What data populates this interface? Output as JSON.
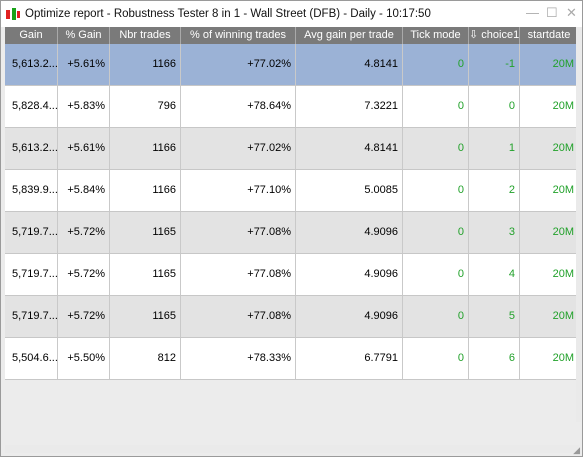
{
  "window": {
    "title": "Optimize report - Robustness Tester 8 in 1 - Wall Street (DFB) - Daily - 10:17:50",
    "controls": {
      "minimize": "—",
      "maximize": "☐",
      "close": "✕"
    }
  },
  "table": {
    "columns": [
      "Gain",
      "% Gain",
      "Nbr trades",
      "% of winning trades",
      "Avg gain per trade",
      "Tick mode",
      "⇩ choice1",
      "startdate"
    ],
    "rows": [
      {
        "gain": "5,613.2...",
        "pct_gain": "+5.61%",
        "nbr_trades": "1166",
        "pct_winning": "+77.02%",
        "avg_gain": "4.8141",
        "tick_mode": "0",
        "choice1": "-1",
        "startdate": "20M",
        "selected": true
      },
      {
        "gain": "5,828.4...",
        "pct_gain": "+5.83%",
        "nbr_trades": "796",
        "pct_winning": "+78.64%",
        "avg_gain": "7.3221",
        "tick_mode": "0",
        "choice1": "0",
        "startdate": "20M"
      },
      {
        "gain": "5,613.2...",
        "pct_gain": "+5.61%",
        "nbr_trades": "1166",
        "pct_winning": "+77.02%",
        "avg_gain": "4.8141",
        "tick_mode": "0",
        "choice1": "1",
        "startdate": "20M"
      },
      {
        "gain": "5,839.9...",
        "pct_gain": "+5.84%",
        "nbr_trades": "1166",
        "pct_winning": "+77.10%",
        "avg_gain": "5.0085",
        "tick_mode": "0",
        "choice1": "2",
        "startdate": "20M"
      },
      {
        "gain": "5,719.7...",
        "pct_gain": "+5.72%",
        "nbr_trades": "1165",
        "pct_winning": "+77.08%",
        "avg_gain": "4.9096",
        "tick_mode": "0",
        "choice1": "3",
        "startdate": "20M"
      },
      {
        "gain": "5,719.7...",
        "pct_gain": "+5.72%",
        "nbr_trades": "1165",
        "pct_winning": "+77.08%",
        "avg_gain": "4.9096",
        "tick_mode": "0",
        "choice1": "4",
        "startdate": "20M"
      },
      {
        "gain": "5,719.7...",
        "pct_gain": "+5.72%",
        "nbr_trades": "1165",
        "pct_winning": "+77.08%",
        "avg_gain": "4.9096",
        "tick_mode": "0",
        "choice1": "5",
        "startdate": "20M"
      },
      {
        "gain": "5,504.6...",
        "pct_gain": "+5.50%",
        "nbr_trades": "812",
        "pct_winning": "+78.33%",
        "avg_gain": "6.7791",
        "tick_mode": "0",
        "choice1": "6",
        "startdate": "20M"
      }
    ]
  },
  "colors": {
    "header_bg": "#7a7a7a",
    "selected_row": "#9bb2d6",
    "green_value": "#21a12a"
  }
}
